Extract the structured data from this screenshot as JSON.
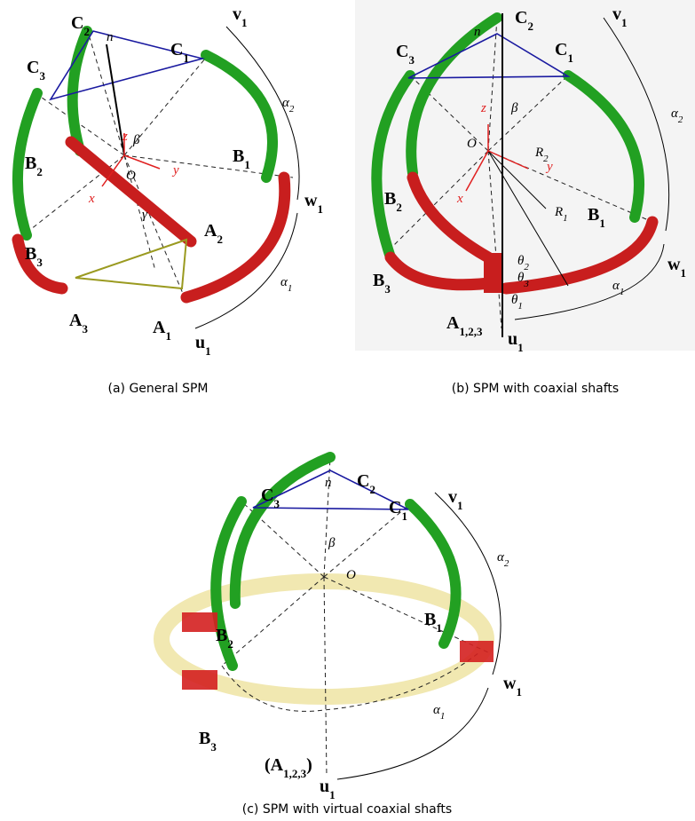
{
  "panels": [
    {
      "caption": "(a)  General SPM",
      "labels": [
        {
          "t": "C",
          "s": "2"
        },
        {
          "t": "n"
        },
        {
          "t": "v",
          "s": "1"
        },
        {
          "t": "C",
          "s": "1"
        },
        {
          "t": "C",
          "s": "3"
        },
        {
          "t": "z"
        },
        {
          "t": "β"
        },
        {
          "t": "α",
          "s": "2"
        },
        {
          "t": "O"
        },
        {
          "t": "B",
          "s": "2"
        },
        {
          "t": "B",
          "s": "1"
        },
        {
          "t": "y"
        },
        {
          "t": "x"
        },
        {
          "t": "γ"
        },
        {
          "t": "w",
          "s": "1"
        },
        {
          "t": "A",
          "s": "2"
        },
        {
          "t": "B",
          "s": "3"
        },
        {
          "t": "A",
          "s": "3"
        },
        {
          "t": "A",
          "s": "1"
        },
        {
          "t": "α",
          "s": "1"
        },
        {
          "t": "u",
          "s": "1"
        }
      ]
    },
    {
      "caption": "(b)  SPM with coaxial shafts",
      "labels": [
        {
          "t": "C",
          "s": "2"
        },
        {
          "t": "n"
        },
        {
          "t": "v",
          "s": "1"
        },
        {
          "t": "C",
          "s": "3"
        },
        {
          "t": "C",
          "s": "1"
        },
        {
          "t": "z"
        },
        {
          "t": "β"
        },
        {
          "t": "α",
          "s": "2"
        },
        {
          "t": "O"
        },
        {
          "t": "R",
          "s": "2"
        },
        {
          "t": "y"
        },
        {
          "t": "x"
        },
        {
          "t": "B",
          "s": "2"
        },
        {
          "t": "R",
          "s": "1"
        },
        {
          "t": "B",
          "s": "1"
        },
        {
          "t": "w",
          "s": "1"
        },
        {
          "t": "θ",
          "s": "2"
        },
        {
          "t": "θ",
          "s": "3"
        },
        {
          "t": "θ",
          "s": "1"
        },
        {
          "t": "B",
          "s": "3"
        },
        {
          "t": "A",
          "s": "1,2,3"
        },
        {
          "t": "α",
          "s": "1"
        },
        {
          "t": "u",
          "s": "1"
        }
      ]
    },
    {
      "caption": "(c)  SPM with virtual coaxial shafts",
      "labels": [
        {
          "t": "n"
        },
        {
          "t": "C",
          "s": "2"
        },
        {
          "t": "C",
          "s": "3"
        },
        {
          "t": "C",
          "s": "1"
        },
        {
          "t": "v",
          "s": "1"
        },
        {
          "t": "β"
        },
        {
          "t": "O"
        },
        {
          "t": "α",
          "s": "2"
        },
        {
          "t": "B",
          "s": "2"
        },
        {
          "t": "B",
          "s": "1"
        },
        {
          "t": "w",
          "s": "1"
        },
        {
          "t": "B",
          "s": "3"
        },
        {
          "t": "(A",
          "s": "1,2,3",
          "e": ")"
        },
        {
          "t": "α",
          "s": "1"
        },
        {
          "t": "u",
          "s": "1"
        }
      ]
    }
  ]
}
